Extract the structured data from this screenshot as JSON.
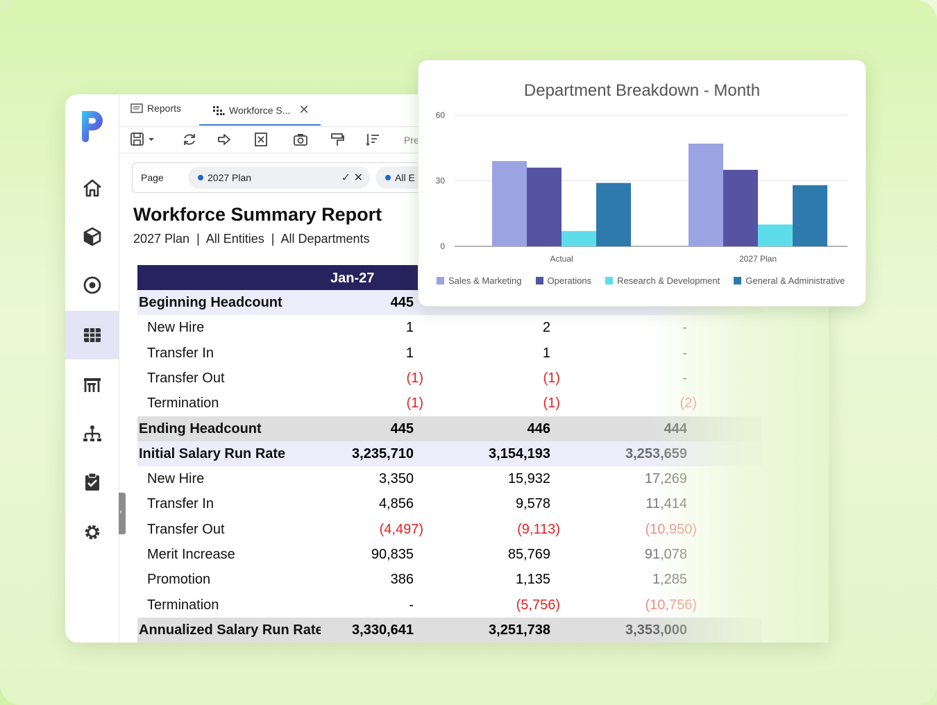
{
  "tabs": [
    {
      "label": "Reports",
      "icon": "document-icon"
    },
    {
      "label": "Workforce S...",
      "icon": "grid-dots-icon"
    }
  ],
  "toolbar": {
    "partial_label": "Pre"
  },
  "filter": {
    "label": "Page",
    "value": "2027 Plan",
    "second_value": "All E"
  },
  "report": {
    "title": "Workforce Summary Report",
    "subtitle": "2027 Plan  |  All Entities  |  All Departments",
    "column_header": "Jan-27",
    "rows": [
      {
        "label": "Beginning Headcount",
        "kind": "section",
        "values": [
          "445",
          "",
          ""
        ]
      },
      {
        "label": "New Hire",
        "kind": "child",
        "values": [
          "1",
          "2",
          "-"
        ]
      },
      {
        "label": "Transfer In",
        "kind": "child",
        "values": [
          "1",
          "1",
          "-"
        ]
      },
      {
        "label": "Transfer Out",
        "kind": "child",
        "values": [
          "(1)",
          "(1)",
          "-"
        ]
      },
      {
        "label": "Termination",
        "kind": "child",
        "values": [
          "(1)",
          "(1)",
          "(2)"
        ]
      },
      {
        "label": "Ending Headcount",
        "kind": "total",
        "values": [
          "445",
          "446",
          "444"
        ]
      },
      {
        "label": "Initial Salary Run Rate",
        "kind": "section",
        "values": [
          "3,235,710",
          "3,154,193",
          "3,253,659"
        ]
      },
      {
        "label": "New Hire",
        "kind": "child",
        "values": [
          "3,350",
          "15,932",
          "17,269"
        ]
      },
      {
        "label": "Transfer In",
        "kind": "child",
        "values": [
          "4,856",
          "9,578",
          "11,414"
        ]
      },
      {
        "label": "Transfer Out",
        "kind": "child",
        "values": [
          "(4,497)",
          "(9,113)",
          "(10,950)"
        ]
      },
      {
        "label": "Merit Increase",
        "kind": "child",
        "values": [
          "90,835",
          "85,769",
          "91,078"
        ]
      },
      {
        "label": "Promotion",
        "kind": "child",
        "values": [
          "386",
          "1,135",
          "1,285"
        ]
      },
      {
        "label": "Termination",
        "kind": "child",
        "values": [
          "-",
          "(5,756)",
          "(10,756)"
        ]
      },
      {
        "label": "Annualized Salary Run Rate",
        "kind": "total",
        "values": [
          "3,330,641",
          "3,251,738",
          "3,353,000"
        ]
      }
    ]
  },
  "chart_data": {
    "type": "bar",
    "title": "Department Breakdown - Month",
    "categories": [
      "Actual",
      "2027 Plan"
    ],
    "ylim": [
      0,
      60
    ],
    "yticks": [
      "0",
      "30",
      "60"
    ],
    "grid": true,
    "legend": "bottom",
    "series": [
      {
        "name": "Sales & Marketing",
        "color": "#9ba3e3",
        "values": [
          39,
          47
        ]
      },
      {
        "name": "Operations",
        "color": "#5553a2",
        "values": [
          36,
          35
        ]
      },
      {
        "name": "Research & Development",
        "color": "#5ddde9",
        "values": [
          7,
          10
        ]
      },
      {
        "name": "General & Administrative",
        "color": "#2f7aad",
        "values": [
          29,
          28
        ]
      }
    ]
  },
  "colors": {
    "accent": "#27235e",
    "negative": "#e81f1f",
    "nav_active": "#e3e4f5"
  }
}
